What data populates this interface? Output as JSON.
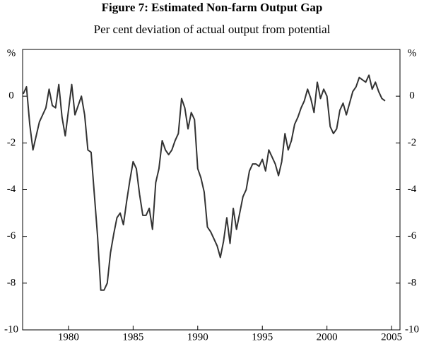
{
  "chart_data": {
    "type": "line",
    "title": "Figure 7: Estimated Non-farm Output Gap",
    "subtitle": "Per cent deviation of actual output from potential",
    "y_label": "%",
    "y2_label": "%",
    "x": [
      1976.5,
      1976.75,
      1977,
      1977.25,
      1977.5,
      1977.75,
      1978,
      1978.25,
      1978.5,
      1978.75,
      1979,
      1979.25,
      1979.5,
      1979.75,
      1980,
      1980.25,
      1980.5,
      1980.75,
      1981,
      1981.25,
      1981.5,
      1981.75,
      1982,
      1982.25,
      1982.5,
      1982.75,
      1983,
      1983.25,
      1983.5,
      1983.75,
      1984,
      1984.25,
      1984.5,
      1984.75,
      1985,
      1985.25,
      1985.5,
      1985.75,
      1986,
      1986.25,
      1986.5,
      1986.75,
      1987,
      1987.25,
      1987.5,
      1987.75,
      1988,
      1988.25,
      1988.5,
      1988.75,
      1989,
      1989.25,
      1989.5,
      1989.75,
      1990,
      1990.25,
      1990.5,
      1990.75,
      1991,
      1991.25,
      1991.5,
      1991.75,
      1992,
      1992.25,
      1992.5,
      1992.75,
      1993,
      1993.25,
      1993.5,
      1993.75,
      1994,
      1994.25,
      1994.5,
      1994.75,
      1995,
      1995.25,
      1995.5,
      1995.75,
      1996,
      1996.25,
      1996.5,
      1996.75,
      1997,
      1997.25,
      1997.5,
      1997.75,
      1998,
      1998.25,
      1998.5,
      1998.75,
      1999,
      1999.25,
      1999.5,
      1999.75,
      2000,
      2000.25,
      2000.5,
      2000.75,
      2001,
      2001.25,
      2001.5,
      2001.75,
      2002,
      2002.25,
      2002.5,
      2002.75,
      2003,
      2003.25,
      2003.5,
      2003.75,
      2004,
      2004.25,
      2004.5
    ],
    "series": [
      {
        "name": "Output gap",
        "color": "#333333",
        "values": [
          0.1,
          0.4,
          -1.2,
          -2.3,
          -1.7,
          -1.1,
          -0.8,
          -0.5,
          0.3,
          -0.4,
          -0.5,
          0.5,
          -0.9,
          -1.7,
          -0.6,
          0.5,
          -0.8,
          -0.4,
          0.0,
          -0.8,
          -2.3,
          -2.4,
          -4.2,
          -6.0,
          -8.3,
          -8.3,
          -8.0,
          -6.7,
          -5.9,
          -5.2,
          -5.0,
          -5.5,
          -4.5,
          -3.6,
          -2.8,
          -3.1,
          -4.2,
          -5.1,
          -5.1,
          -4.8,
          -5.7,
          -3.7,
          -3.1,
          -1.9,
          -2.3,
          -2.5,
          -2.3,
          -1.9,
          -1.6,
          -0.1,
          -0.5,
          -1.4,
          -0.7,
          -1.0,
          -3.1,
          -3.5,
          -4.1,
          -5.6,
          -5.8,
          -6.1,
          -6.4,
          -6.9,
          -6.2,
          -5.2,
          -6.3,
          -4.8,
          -5.7,
          -5.0,
          -4.3,
          -4.0,
          -3.2,
          -2.9,
          -2.9,
          -3.0,
          -2.7,
          -3.2,
          -2.3,
          -2.6,
          -2.9,
          -3.4,
          -2.8,
          -1.6,
          -2.3,
          -1.9,
          -1.2,
          -0.9,
          -0.5,
          -0.2,
          0.3,
          -0.1,
          -0.7,
          0.6,
          -0.1,
          0.3,
          0.0,
          -1.3,
          -1.6,
          -1.4,
          -0.6,
          -0.3,
          -0.8,
          -0.3,
          0.2,
          0.4,
          0.8,
          0.7,
          0.6,
          0.9,
          0.3,
          0.6,
          0.2,
          -0.1,
          -0.2
        ]
      }
    ],
    "xlim": [
      1976.45,
      2005.65
    ],
    "xticks": [
      1980,
      1985,
      1990,
      1995,
      2000,
      2005
    ],
    "ylim": [
      -10,
      2
    ],
    "yticks": [
      -10,
      -8,
      -6,
      -4,
      -2,
      0
    ],
    "y2lim": [
      -10,
      2
    ],
    "y2ticks": [
      -10,
      -8,
      -6,
      -4,
      -2,
      0
    ]
  }
}
